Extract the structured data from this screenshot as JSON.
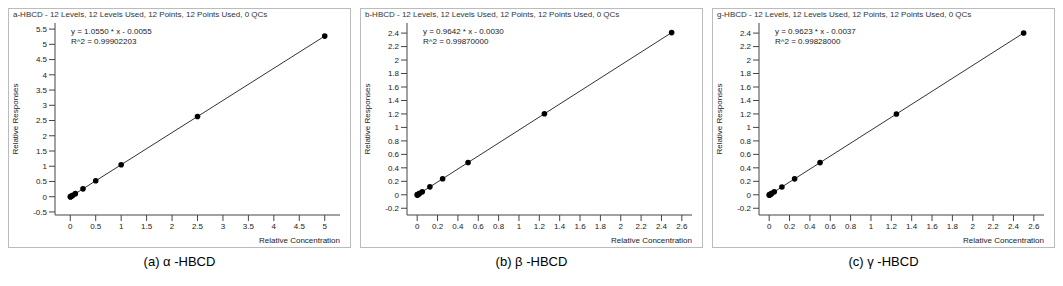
{
  "chart_data": [
    {
      "type": "scatter",
      "title": "a-HBCD - 12 Levels, 12 Levels Used, 12 Points, 12 Points Used, 0 QCs",
      "annotations": [
        "y = 1.0550 * x - 0.0055",
        "R^2 = 0.99902203"
      ],
      "x_label": "Relative Concentration",
      "y_label": "Relative Responses",
      "caption": "(a) α -HBCD",
      "x": [
        0.002,
        0.005,
        0.01,
        0.02,
        0.025,
        0.05,
        0.1,
        0.25,
        0.5,
        1,
        2.5,
        5
      ],
      "values": [
        -0.0034,
        -0.0002,
        0.005,
        0.0156,
        0.0209,
        0.0473,
        0.1,
        0.2583,
        0.522,
        1.0495,
        2.632,
        5.27
      ],
      "color": "#000000",
      "marker": "circle",
      "line_style": "solid",
      "xlim": [
        -0.3,
        5.3
      ],
      "xticks": [
        0,
        0.5,
        1,
        1.5,
        2,
        2.5,
        3,
        3.5,
        4,
        4.5,
        5
      ],
      "ylim": [
        -0.6,
        5.7
      ],
      "yticks": [
        -0.5,
        0,
        0.5,
        1,
        1.5,
        2,
        2.5,
        3,
        3.5,
        4,
        4.5,
        5,
        5.5
      ],
      "grid": false
    },
    {
      "type": "scatter",
      "title": "b-HBCD - 12 Levels, 12 Levels Used, 12 Points, 12 Points Used, 0 QCs",
      "annotations": [
        "y = 0.9642 * x - 0.0030",
        "R^2 = 0.99870000"
      ],
      "x_label": "Relative Concentration",
      "y_label": "Relative Responses",
      "caption": "(b) β -HBCD",
      "x": [
        0.001,
        0.0025,
        0.005,
        0.01,
        0.0125,
        0.025,
        0.05,
        0.125,
        0.25,
        0.5,
        1.25,
        2.5
      ],
      "values": [
        -0.002,
        -0.0006,
        0.0018,
        0.0066,
        0.0091,
        0.0211,
        0.0452,
        0.1175,
        0.238,
        0.4791,
        1.2023,
        2.4075
      ],
      "color": "#000000",
      "marker": "circle",
      "line_style": "solid",
      "xlim": [
        -0.1,
        2.7
      ],
      "xticks": [
        0,
        0.2,
        0.4,
        0.6,
        0.8,
        1,
        1.2,
        1.4,
        1.6,
        1.8,
        2,
        2.2,
        2.4,
        2.6
      ],
      "ylim": [
        -0.3,
        2.55
      ],
      "yticks": [
        -0.2,
        0,
        0.2,
        0.4,
        0.6,
        0.8,
        1,
        1.2,
        1.4,
        1.6,
        1.8,
        2,
        2.2,
        2.4
      ],
      "grid": false
    },
    {
      "type": "scatter",
      "title": "g-HBCD - 12 Levels, 12 Levels Used, 12 Points, 12 Points Used, 0 QCs",
      "annotations": [
        "y = 0.9623 * x - 0.0037",
        "R^2 = 0.99828000"
      ],
      "x_label": "Relative Concentration",
      "y_label": "Relative Responses",
      "caption": "(c) γ -HBCD",
      "x": [
        0.001,
        0.0025,
        0.005,
        0.01,
        0.0125,
        0.025,
        0.05,
        0.125,
        0.25,
        0.5,
        1.25,
        2.5
      ],
      "values": [
        -0.0027,
        -0.0013,
        0.0011,
        0.0059,
        0.0083,
        0.0204,
        0.0444,
        0.1166,
        0.2369,
        0.4775,
        1.1992,
        2.4021
      ],
      "color": "#000000",
      "marker": "circle",
      "line_style": "solid",
      "xlim": [
        -0.1,
        2.7
      ],
      "xticks": [
        0,
        0.2,
        0.4,
        0.6,
        0.8,
        1,
        1.2,
        1.4,
        1.6,
        1.8,
        2,
        2.2,
        2.4,
        2.6
      ],
      "ylim": [
        -0.3,
        2.55
      ],
      "yticks": [
        -0.2,
        0,
        0.2,
        0.4,
        0.6,
        0.8,
        1,
        1.2,
        1.4,
        1.6,
        1.8,
        2,
        2.2,
        2.4
      ],
      "grid": false
    }
  ]
}
